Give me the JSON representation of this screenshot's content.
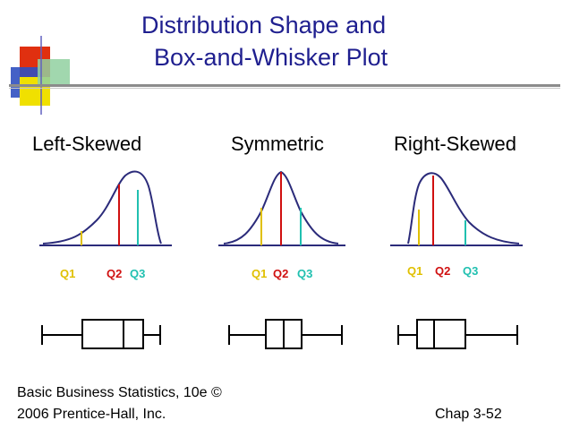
{
  "title": {
    "line1": "Distribution Shape and",
    "line2": "Box-and-Whisker Plot"
  },
  "panels": [
    {
      "heading": "Left-Skewed",
      "q1": "Q1",
      "q2": "Q2",
      "q3": "Q3"
    },
    {
      "heading": "Symmetric",
      "q1": "Q1",
      "q2": "Q2",
      "q3": "Q3"
    },
    {
      "heading": "Right-Skewed",
      "q1": "Q1",
      "q2": "Q2",
      "q3": "Q3"
    }
  ],
  "colors": {
    "title": "#1f1f8f",
    "curve": "#2b2b7a",
    "q1": "#e0c000",
    "q2": "#d01010",
    "q3": "#20c0b0"
  },
  "footer": {
    "source_line1": "Basic Business Statistics, 10e ©",
    "source_line2": "2006 Prentice-Hall, Inc.",
    "page": "Chap 3-52"
  }
}
